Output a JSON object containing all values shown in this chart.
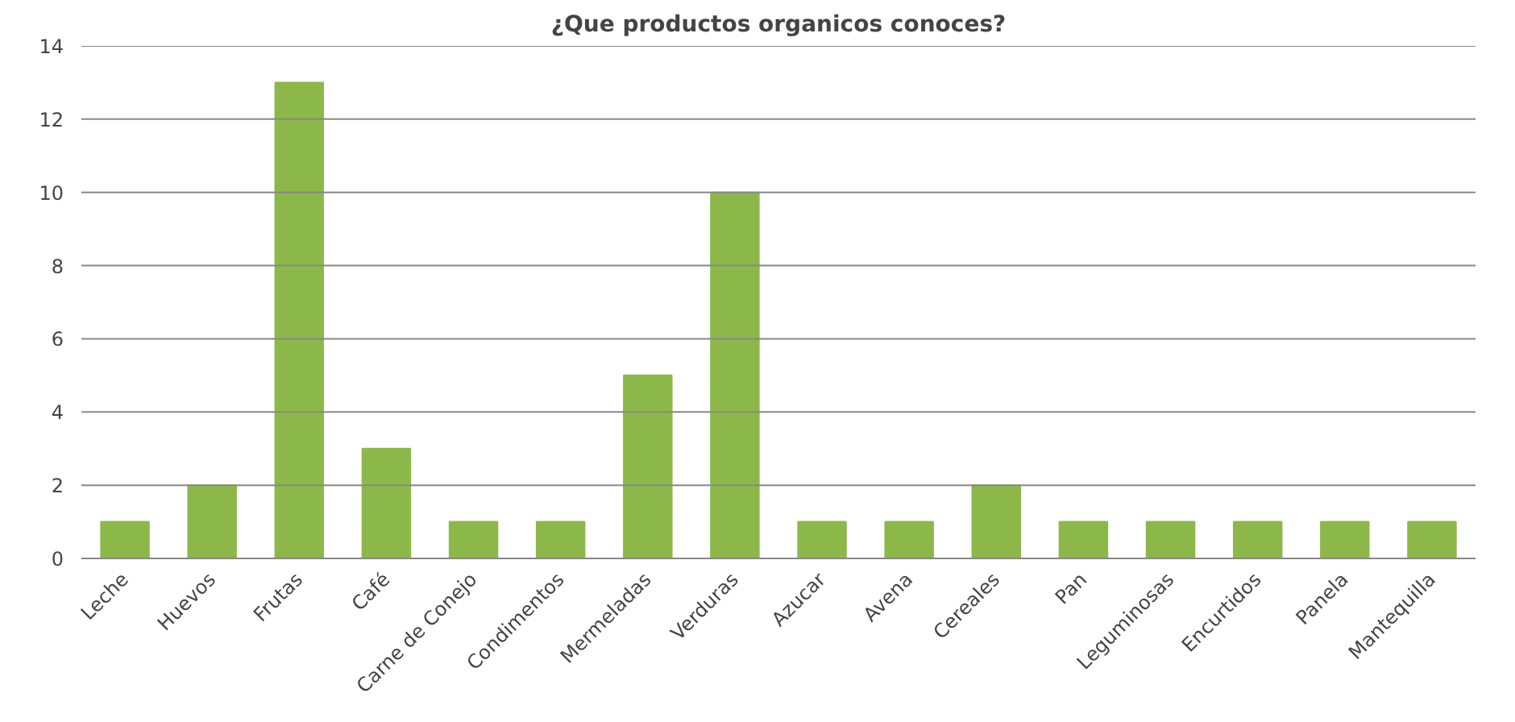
{
  "chart_data": {
    "type": "bar",
    "title": "¿Que productos organicos conoces?",
    "categories": [
      "Leche",
      "Huevos",
      "Frutas",
      "Café",
      "Carne de Conejo",
      "Condimentos",
      "Mermeladas",
      "Verduras",
      "Azucar",
      "Avena",
      "Cereales",
      "Pan",
      "Leguminosas",
      "Encurtidos",
      "Panela",
      "Mantequilla"
    ],
    "values": [
      1,
      2,
      13,
      3,
      1,
      1,
      5,
      10,
      1,
      1,
      2,
      1,
      1,
      1,
      1,
      1
    ],
    "color": "#8cb84a",
    "ylim": [
      0,
      14
    ],
    "yticks": [
      0,
      2,
      4,
      6,
      8,
      10,
      12,
      14
    ],
    "grid": "y"
  }
}
